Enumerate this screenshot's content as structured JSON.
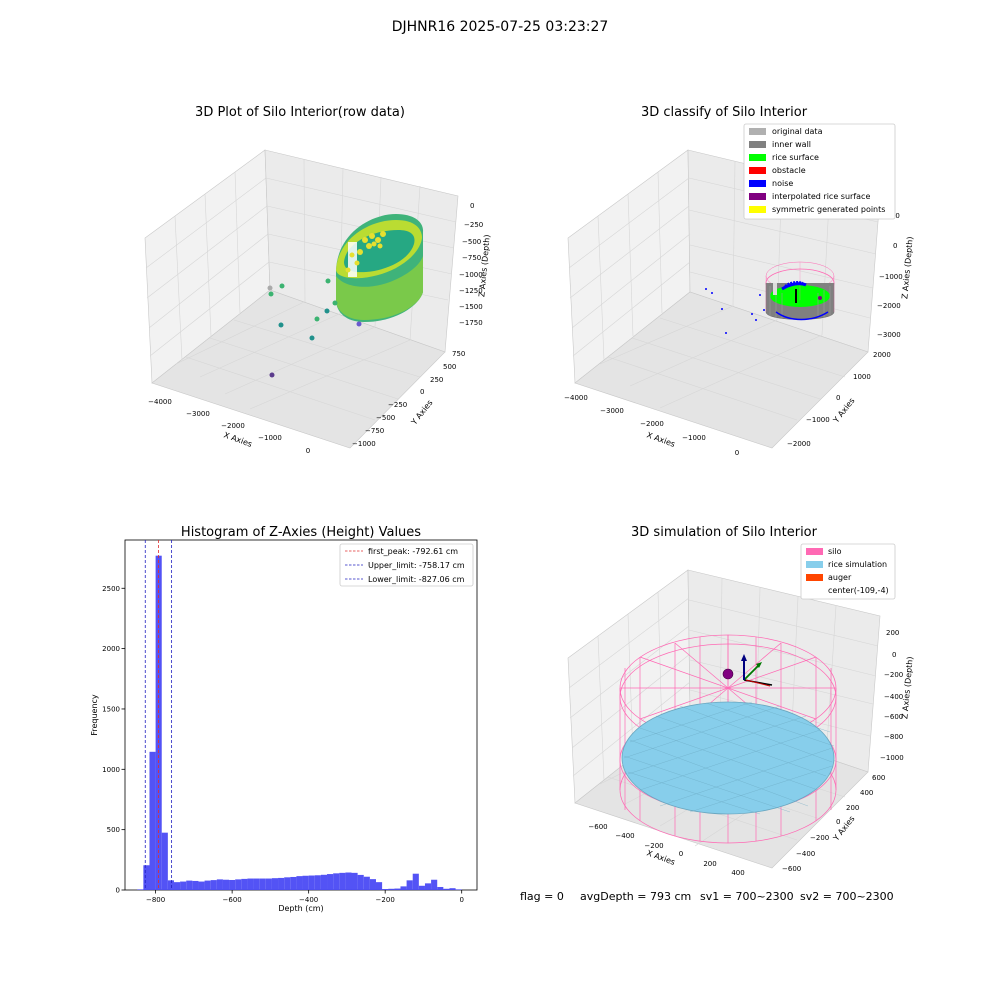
{
  "suptitle": "DJHNR16 2025-07-25 03:23:27",
  "colors": {
    "hist_bar": "#4a4af4",
    "first_peak_line": "#e03030",
    "limit_line": "#2020c0",
    "silo": "#ff69b4",
    "rice_simulation": "#87ceeb",
    "auger": "#ff4500",
    "original_data": "#b0b0b0",
    "inner_wall": "#808080",
    "rice_surface": "#00ff00",
    "obstacle": "#ff0000",
    "noise": "#0000ff",
    "interpolated_rice_surface": "#800080",
    "symmetric_generated_points": "#ffff00"
  },
  "chart_data": [
    {
      "type": "scatter",
      "subtype": "3d",
      "title": "3D Plot of Silo Interior(row data)",
      "xlabel": "X Axies",
      "ylabel": "Y Axies",
      "zlabel": "Z Axies (Depth)",
      "x_ticks": [
        "−4000",
        "−3000",
        "−2000",
        "−1000",
        "0"
      ],
      "y_ticks": [
        "750",
        "500",
        "250",
        "0",
        "−250",
        "−500",
        "−750",
        "−1000"
      ],
      "z_ticks": [
        "0",
        "−250",
        "−500",
        "−750",
        "−1000",
        "−1250",
        "−1500",
        "−1750"
      ],
      "colormap": "viridis"
    },
    {
      "type": "scatter",
      "subtype": "3d",
      "title": "3D classify of Silo Interior",
      "xlabel": "X Axies",
      "ylabel": "Y Axies",
      "zlabel": "Z Axies (Depth)",
      "x_ticks": [
        "−4000",
        "−3000",
        "−2000",
        "−1000",
        "0"
      ],
      "y_ticks": [
        "2000",
        "1000",
        "0",
        "−1000",
        "−2000"
      ],
      "z_ticks": [
        "1000",
        "0",
        "−1000",
        "−2000",
        "−3000"
      ],
      "legend": [
        {
          "label": "original data",
          "color": "#b0b0b0"
        },
        {
          "label": "inner wall",
          "color": "#808080"
        },
        {
          "label": "rice surface",
          "color": "#00ff00"
        },
        {
          "label": "obstacle",
          "color": "#ff0000"
        },
        {
          "label": "noise",
          "color": "#0000ff"
        },
        {
          "label": "interpolated rice surface",
          "color": "#800080"
        },
        {
          "label": "symmetric generated points",
          "color": "#ffff00"
        }
      ],
      "legend_position": "top-right"
    },
    {
      "type": "bar",
      "subtype": "histogram",
      "title": "Histogram of Z-Axies (Height) Values",
      "xlabel": "Depth (cm)",
      "ylabel": "Frequency",
      "xlim": [
        -880,
        40
      ],
      "ylim": [
        0,
        2900
      ],
      "x_ticks": [
        -800,
        -600,
        -400,
        -200,
        0
      ],
      "x_tick_labels": [
        "−800",
        "−600",
        "−400",
        "−200",
        "0"
      ],
      "y_ticks": [
        0,
        500,
        1000,
        1500,
        2000,
        2500
      ],
      "bin_width": 16,
      "bins": [
        {
          "x": -848,
          "value": 5
        },
        {
          "x": -832,
          "value": 205
        },
        {
          "x": -816,
          "value": 1145
        },
        {
          "x": -800,
          "value": 2770
        },
        {
          "x": -784,
          "value": 475
        },
        {
          "x": -768,
          "value": 80
        },
        {
          "x": -752,
          "value": 65
        },
        {
          "x": -736,
          "value": 70
        },
        {
          "x": -720,
          "value": 78
        },
        {
          "x": -704,
          "value": 75
        },
        {
          "x": -688,
          "value": 70
        },
        {
          "x": -672,
          "value": 78
        },
        {
          "x": -656,
          "value": 82
        },
        {
          "x": -640,
          "value": 88
        },
        {
          "x": -624,
          "value": 85
        },
        {
          "x": -608,
          "value": 83
        },
        {
          "x": -592,
          "value": 88
        },
        {
          "x": -576,
          "value": 92
        },
        {
          "x": -560,
          "value": 95
        },
        {
          "x": -544,
          "value": 95
        },
        {
          "x": -528,
          "value": 95
        },
        {
          "x": -512,
          "value": 95
        },
        {
          "x": -496,
          "value": 98
        },
        {
          "x": -480,
          "value": 100
        },
        {
          "x": -464,
          "value": 105
        },
        {
          "x": -448,
          "value": 108
        },
        {
          "x": -432,
          "value": 115
        },
        {
          "x": -416,
          "value": 118
        },
        {
          "x": -400,
          "value": 120
        },
        {
          "x": -384,
          "value": 122
        },
        {
          "x": -368,
          "value": 126
        },
        {
          "x": -352,
          "value": 132
        },
        {
          "x": -336,
          "value": 138
        },
        {
          "x": -320,
          "value": 142
        },
        {
          "x": -304,
          "value": 145
        },
        {
          "x": -288,
          "value": 142
        },
        {
          "x": -272,
          "value": 125
        },
        {
          "x": -256,
          "value": 110
        },
        {
          "x": -240,
          "value": 90
        },
        {
          "x": -224,
          "value": 65
        },
        {
          "x": -208,
          "value": 8
        },
        {
          "x": -192,
          "value": 10
        },
        {
          "x": -176,
          "value": 12
        },
        {
          "x": -160,
          "value": 30
        },
        {
          "x": -144,
          "value": 80
        },
        {
          "x": -128,
          "value": 135
        },
        {
          "x": -112,
          "value": 35
        },
        {
          "x": -96,
          "value": 55
        },
        {
          "x": -80,
          "value": 85
        },
        {
          "x": -64,
          "value": 25
        },
        {
          "x": -48,
          "value": 10
        },
        {
          "x": -32,
          "value": 15
        },
        {
          "x": -16,
          "value": 5
        }
      ],
      "vlines": [
        {
          "label": "first_peak: -792.61 cm",
          "x": -792.61,
          "color": "#e03030"
        },
        {
          "label": "Upper_limit: -758.17 cm",
          "x": -758.17,
          "color": "#2020c0"
        },
        {
          "label": "Lower_limit: -827.06 cm",
          "x": -827.06,
          "color": "#2020c0"
        }
      ],
      "legend_position": "top-right"
    },
    {
      "type": "scatter",
      "subtype": "3d-surface",
      "title": "3D simulation of Silo Interior",
      "xlabel": "X Axies",
      "ylabel": "Y Axies",
      "zlabel": "Z Axies (Depth)",
      "x_ticks": [
        "−600",
        "−400",
        "−200",
        "0",
        "200",
        "400"
      ],
      "y_ticks": [
        "600",
        "400",
        "200",
        "0",
        "−200",
        "−400",
        "−600"
      ],
      "z_ticks": [
        "200",
        "0",
        "−200",
        "−400",
        "−600",
        "−800",
        "−1000"
      ],
      "legend": [
        {
          "label": "silo",
          "color": "#ff69b4"
        },
        {
          "label": "rice simulation",
          "color": "#87ceeb"
        },
        {
          "label": "auger",
          "color": "#ff4500"
        },
        {
          "label": "center(-109,-4)",
          "color": ""
        }
      ],
      "legend_position": "top-right"
    }
  ],
  "status_line": {
    "flag": "flag = 0",
    "avg_depth": "avgDepth = 793 cm",
    "sv1": "sv1 = 700~2300",
    "sv2": "sv2 = 700~2300"
  }
}
